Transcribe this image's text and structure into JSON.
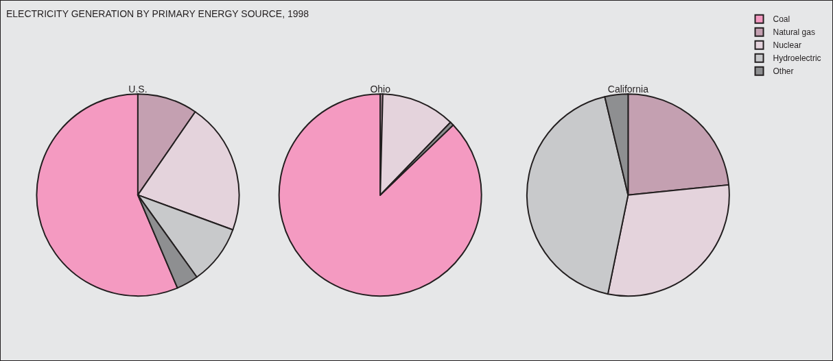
{
  "chart_data": [
    {
      "type": "pie",
      "title": "U.S.",
      "annotations": [
        "ELECTRICITY GENERATION BY PRIMARY ENERGY SOURCE, 1998"
      ],
      "legend": "top right",
      "categories": [
        "Coal",
        "Natural gas",
        "Nuclear",
        "Hydroelectric",
        "Other"
      ],
      "values": [
        56.4,
        9.6,
        21.0,
        9.5,
        3.5
      ],
      "colors": [
        "#f49ac1",
        "#c4a0b1",
        "#e4d3dc",
        "#c8c9cb",
        "#8e8f91"
      ]
    },
    {
      "type": "pie",
      "title": "Ohio",
      "categories": [
        null,
        null,
        null,
        null,
        null
      ],
      "values": [
        87.1,
        0.4,
        11.8,
        null,
        0.6
      ],
      "colors": [
        "#f49ac1",
        "#c4a0b1",
        "#e4d3dc",
        "#c8c9cb",
        "#8e8f91"
      ]
    },
    {
      "type": "pie",
      "title": "California",
      "categories": [
        null,
        null,
        null,
        null,
        null
      ],
      "values": [
        0,
        23.4,
        29.8,
        43.1,
        3.7
      ],
      "colors": [
        "#f49ac1",
        "#c4a0b1",
        "#e4d3dc",
        "#c8c9cb",
        "#8e8f91"
      ]
    }
  ]
}
